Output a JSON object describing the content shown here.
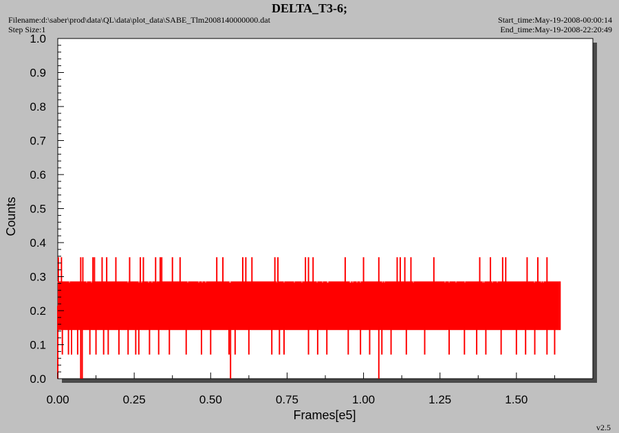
{
  "header": {
    "title": "DELTA_T3-6;",
    "filename": "Filename:d:\\saber\\prod\\data\\QL\\data\\plot_data\\SABE_Tlm2008140000000.dat",
    "step_size": "Step Size:1",
    "start_time": "Start_time:May-19-2008-00:00:14",
    "end_time": "End_time:May-19-2008-22:20:49"
  },
  "version": "v2.5",
  "colors": {
    "background": "#c0c0c0",
    "plot_area": "#ffffff",
    "series": "#ff0000",
    "shadow": "#4a4a4a"
  },
  "chart_data": {
    "type": "line",
    "xlabel": "Frames[e5]",
    "ylabel": "Counts",
    "xlim": [
      0,
      1.75
    ],
    "ylim": [
      0,
      1.0
    ],
    "x_ticks": [
      "0.00",
      "0.25",
      "0.50",
      "0.75",
      "1.00",
      "1.25",
      "1.50"
    ],
    "y_ticks": [
      "0.0",
      "0.1",
      "0.2",
      "0.3",
      "0.4",
      "0.5",
      "0.6",
      "0.7",
      "0.8",
      "0.9",
      "1.0"
    ],
    "grid": false,
    "series": [
      {
        "x_range": [
          0,
          1.645
        ],
        "band_low": 0.143,
        "band_high": 0.286,
        "mid_level": 0.214,
        "spike_high": 0.357,
        "spike_low": 0.071,
        "min_value": 0.0,
        "spikes_high_at": [
          0.002,
          0.012,
          0.075,
          0.082,
          0.115,
          0.12,
          0.145,
          0.16,
          0.19,
          0.235,
          0.27,
          0.28,
          0.32,
          0.335,
          0.34,
          0.375,
          0.4,
          0.52,
          0.54,
          0.605,
          0.615,
          0.635,
          0.71,
          0.72,
          0.81,
          0.82,
          0.835,
          0.94,
          1.0,
          1.05,
          1.11,
          1.12,
          1.135,
          1.155,
          1.23,
          1.38,
          1.415,
          1.455,
          1.465,
          1.535,
          1.57,
          1.6
        ],
        "spikes_low_at": [
          0.0,
          0.015,
          0.035,
          0.045,
          0.065,
          0.105,
          0.125,
          0.15,
          0.165,
          0.2,
          0.23,
          0.255,
          0.265,
          0.3,
          0.33,
          0.365,
          0.42,
          0.47,
          0.5,
          0.56,
          0.58,
          0.625,
          0.7,
          0.725,
          0.74,
          0.82,
          0.85,
          0.88,
          0.95,
          0.99,
          1.02,
          1.06,
          1.09,
          1.14,
          1.2,
          1.28,
          1.33,
          1.37,
          1.4,
          1.45,
          1.5,
          1.53,
          1.56,
          1.6,
          1.625
        ],
        "spikes_zero_at": [
          0.0,
          0.075,
          0.08,
          0.565,
          1.05
        ]
      }
    ]
  }
}
